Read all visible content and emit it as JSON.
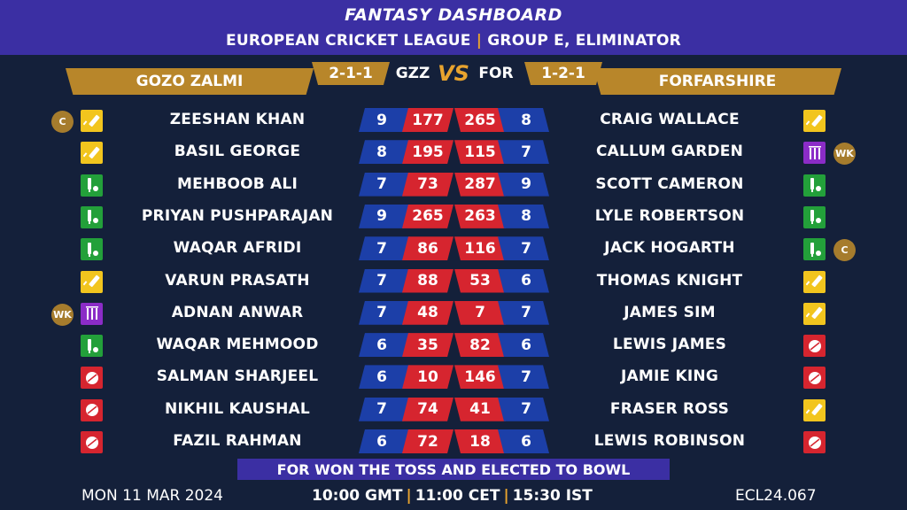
{
  "header": {
    "title": "FANTASY DASHBOARD",
    "league": "EUROPEAN CRICKET LEAGUE",
    "separator": "|",
    "stage": "GROUP E, ELIMINATOR"
  },
  "match": {
    "vs": "VS",
    "team_left": {
      "name": "GOZO ZALMI",
      "abbr": "GZZ",
      "record": "2-1-1"
    },
    "team_right": {
      "name": "FORFARSHIRE",
      "abbr": "FOR",
      "record": "1-2-1"
    }
  },
  "left_players": [
    {
      "name": "ZEESHAN KHAN",
      "credits": "9",
      "points": "177",
      "role": "bat",
      "badge": "C"
    },
    {
      "name": "BASIL GEORGE",
      "credits": "8",
      "points": "195",
      "role": "bat",
      "badge": ""
    },
    {
      "name": "MEHBOOB ALI",
      "credits": "7",
      "points": "73",
      "role": "ar",
      "badge": ""
    },
    {
      "name": "PRIYAN PUSHPARAJAN",
      "credits": "9",
      "points": "265",
      "role": "ar",
      "badge": ""
    },
    {
      "name": "WAQAR AFRIDI",
      "credits": "7",
      "points": "86",
      "role": "ar",
      "badge": ""
    },
    {
      "name": "VARUN PRASATH",
      "credits": "7",
      "points": "88",
      "role": "bat",
      "badge": ""
    },
    {
      "name": "ADNAN ANWAR",
      "credits": "7",
      "points": "48",
      "role": "wk",
      "badge": "WK"
    },
    {
      "name": "WAQAR MEHMOOD",
      "credits": "6",
      "points": "35",
      "role": "ar",
      "badge": ""
    },
    {
      "name": "SALMAN SHARJEEL",
      "credits": "6",
      "points": "10",
      "role": "bowl",
      "badge": ""
    },
    {
      "name": "NIKHIL KAUSHAL",
      "credits": "7",
      "points": "74",
      "role": "bowl",
      "badge": ""
    },
    {
      "name": "FAZIL RAHMAN",
      "credits": "6",
      "points": "72",
      "role": "bowl",
      "badge": ""
    }
  ],
  "right_players": [
    {
      "name": "CRAIG WALLACE",
      "credits": "8",
      "points": "265",
      "role": "bat",
      "badge": ""
    },
    {
      "name": "CALLUM GARDEN",
      "credits": "7",
      "points": "115",
      "role": "wk",
      "badge": "WK"
    },
    {
      "name": "SCOTT CAMERON",
      "credits": "9",
      "points": "287",
      "role": "ar",
      "badge": ""
    },
    {
      "name": "LYLE ROBERTSON",
      "credits": "8",
      "points": "263",
      "role": "ar",
      "badge": ""
    },
    {
      "name": "JACK HOGARTH",
      "credits": "7",
      "points": "116",
      "role": "ar",
      "badge": "C"
    },
    {
      "name": "THOMAS KNIGHT",
      "credits": "6",
      "points": "53",
      "role": "bat",
      "badge": ""
    },
    {
      "name": "JAMES SIM",
      "credits": "7",
      "points": "7",
      "role": "bat",
      "badge": ""
    },
    {
      "name": "LEWIS JAMES",
      "credits": "6",
      "points": "82",
      "role": "bowl",
      "badge": ""
    },
    {
      "name": "JAMIE KING",
      "credits": "7",
      "points": "146",
      "role": "bowl",
      "badge": ""
    },
    {
      "name": "FRASER ROSS",
      "credits": "7",
      "points": "41",
      "role": "bat",
      "badge": ""
    },
    {
      "name": "LEWIS ROBINSON",
      "credits": "6",
      "points": "18",
      "role": "bowl",
      "badge": ""
    }
  ],
  "role_icons": {
    "bat": "cricket-bat-icon",
    "ar": "all-rounder-icon",
    "bowl": "cricket-ball-icon",
    "wk": "wicket-stumps-icon"
  },
  "colors": {
    "header_bg": "#3b2fa3",
    "accent_gold": "#b8862a",
    "credits_blue": "#1c3fa8",
    "points_red": "#d6252f",
    "bat_yellow": "#f2c51e",
    "allrounder_green": "#23a03a",
    "wicketkeeper_purple": "#8b2cc7",
    "background": "#14203a"
  },
  "footer": {
    "toss": "FOR WON THE TOSS AND ELECTED TO BOWL",
    "date": "MON 11 MAR 2024",
    "time_gmt": "10:00 GMT",
    "time_cet": "11:00 CET",
    "time_ist": "15:30 IST",
    "time_sep": "|",
    "code": "ECL24.067"
  }
}
